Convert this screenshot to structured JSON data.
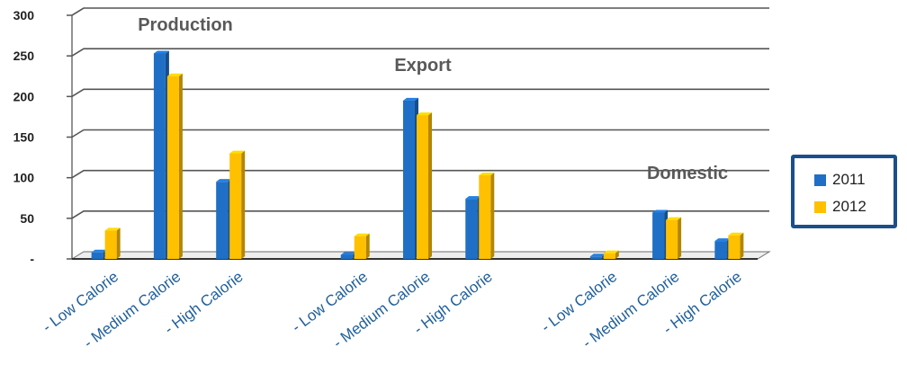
{
  "chart_data": {
    "type": "bar",
    "ylim": [
      0,
      300
    ],
    "yticks": [
      {
        "value": 300,
        "label": "300"
      },
      {
        "value": 250,
        "label": "250"
      },
      {
        "value": 200,
        "label": "200"
      },
      {
        "value": 150,
        "label": "150"
      },
      {
        "value": 100,
        "label": "100"
      },
      {
        "value": 50,
        "label": "50"
      },
      {
        "value": 0,
        "label": "-"
      }
    ],
    "grid": true,
    "legend_position": "right",
    "categories": [
      "- Low Calorie",
      "- Medium Calorie",
      "- High Calorie",
      "",
      "- Low Calorie",
      "- Medium Calorie",
      "- High Calorie",
      "",
      "- Low Calorie",
      "- Medium Calorie",
      "- High Calorie"
    ],
    "groups": [
      {
        "title": "Production"
      },
      {
        "title": "Export"
      },
      {
        "title": "Domestic"
      }
    ],
    "series": [
      {
        "name": "2011",
        "color": "#1f6fc6",
        "values": [
          8,
          253,
          95,
          null,
          5,
          195,
          74,
          null,
          3,
          57,
          22
        ]
      },
      {
        "name": "2012",
        "color": "#ffc000",
        "values": [
          35,
          225,
          130,
          null,
          28,
          177,
          103,
          null,
          7,
          48,
          29
        ]
      }
    ]
  }
}
